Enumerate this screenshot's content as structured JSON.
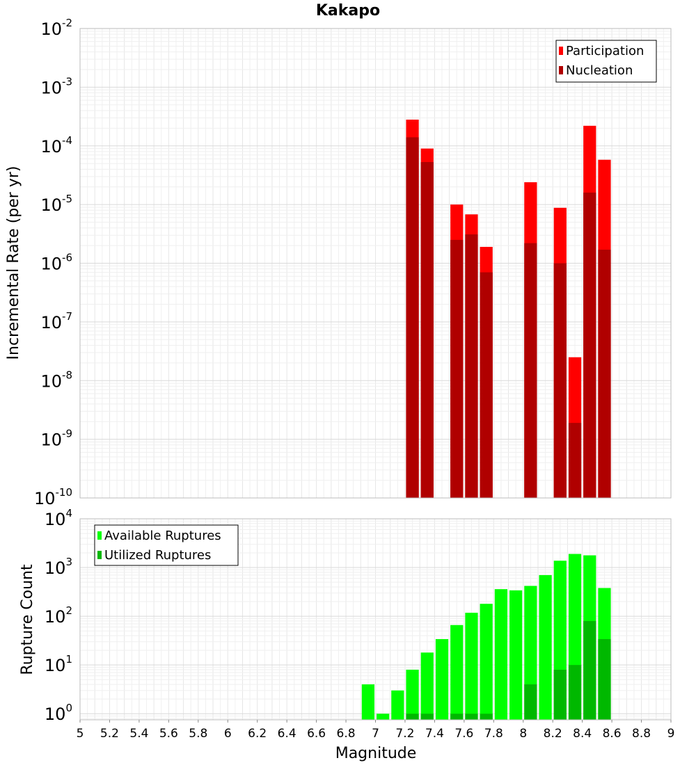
{
  "chart_data": [
    {
      "type": "bar",
      "title": "Kakapo",
      "ylabel": "Incremental Rate (per yr)",
      "xlabel": "",
      "yscale": "log",
      "ylim": [
        1e-10,
        0.01
      ],
      "xlim": [
        5,
        9
      ],
      "grid": true,
      "legend": "top-right",
      "bin_width": 0.1,
      "y_tick_exponents": [
        "-10",
        "-9",
        "-8",
        "-7",
        "-6",
        "-5",
        "-4",
        "-3",
        "-2"
      ],
      "series": [
        {
          "name": "Participation",
          "color": "#ff0000",
          "x": [
            7.25,
            7.35,
            7.55,
            7.65,
            7.75,
            8.05,
            8.25,
            8.35,
            8.45,
            8.55
          ],
          "values": [
            0.00028,
            9e-05,
            1e-05,
            6.8e-06,
            1.9e-06,
            2.4e-05,
            8.8e-06,
            2.5e-08,
            0.00022,
            5.8e-05
          ]
        },
        {
          "name": "Nucleation",
          "color": "#b00000",
          "x": [
            7.25,
            7.35,
            7.55,
            7.65,
            7.75,
            8.05,
            8.25,
            8.35,
            8.45,
            8.55
          ],
          "values": [
            0.00014,
            5.3e-05,
            2.5e-06,
            3.1e-06,
            7e-07,
            2.2e-06,
            1e-06,
            1.9e-09,
            1.6e-05,
            1.7e-06
          ]
        }
      ]
    },
    {
      "type": "bar",
      "title": "",
      "ylabel": "Rupture Count",
      "xlabel": "Magnitude",
      "yscale": "log",
      "ylim": [
        0.75,
        10000
      ],
      "xlim": [
        5,
        9
      ],
      "grid": true,
      "legend": "top-left",
      "bin_width": 0.1,
      "y_tick_exponents": [
        "0",
        "1",
        "2",
        "3",
        "4"
      ],
      "x_tick_labels": [
        "5",
        "5.2",
        "5.4",
        "5.6",
        "5.8",
        "6",
        "6.2",
        "6.4",
        "6.6",
        "6.8",
        "7",
        "7.2",
        "7.4",
        "7.6",
        "7.8",
        "8",
        "8.2",
        "8.4",
        "8.6",
        "8.8",
        "9"
      ],
      "series": [
        {
          "name": "Available Ruptures",
          "color": "#00ff00",
          "x": [
            6.95,
            7.05,
            7.15,
            7.25,
            7.35,
            7.45,
            7.55,
            7.65,
            7.75,
            7.85,
            7.95,
            8.05,
            8.15,
            8.25,
            8.35,
            8.45,
            8.55
          ],
          "values": [
            4,
            1,
            3,
            8,
            18,
            34,
            66,
            118,
            180,
            360,
            340,
            420,
            700,
            1380,
            1900,
            1780,
            380
          ]
        },
        {
          "name": "Utilized Ruptures",
          "color": "#00b800",
          "x": [
            7.25,
            7.35,
            7.55,
            7.65,
            7.75,
            8.05,
            8.25,
            8.35,
            8.45,
            8.55
          ],
          "values": [
            1,
            1,
            1,
            1,
            1,
            4,
            8,
            10,
            80,
            34
          ]
        }
      ]
    }
  ]
}
